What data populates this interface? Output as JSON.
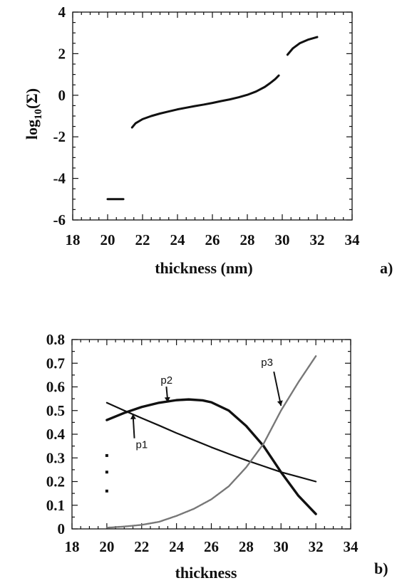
{
  "chart_data": [
    {
      "type": "line",
      "panel_label": "a)",
      "xlabel": "thickness (nm)",
      "ylabel_base": "log",
      "ylabel_sub": "10",
      "ylabel_arg": "(Σ)",
      "xlim": [
        18,
        34
      ],
      "ylim": [
        -6,
        4
      ],
      "xticks": [
        18,
        20,
        22,
        24,
        26,
        28,
        30,
        32,
        34
      ],
      "yticks": [
        4,
        2,
        0,
        -2,
        -4,
        -6
      ],
      "tick_labels_x": [
        "18",
        "20",
        "22",
        "24",
        "26",
        "28",
        "30",
        "32",
        "34"
      ],
      "tick_labels_y": [
        "4",
        "2",
        "0",
        "-2",
        "-4",
        "-6"
      ],
      "grid": false,
      "series": [
        {
          "x": [
            20.0,
            20.3,
            20.6,
            20.9
          ],
          "y": [
            -5.0,
            -5.0,
            -5.0,
            -5.0
          ]
        },
        {
          "x": [
            21.4,
            21.6,
            22.0,
            22.5,
            23.0,
            23.5,
            24.0,
            24.5,
            25.0,
            25.5,
            26.0,
            26.5,
            27.0,
            27.5,
            28.0,
            28.5,
            29.0,
            29.3,
            29.6,
            29.8
          ],
          "y": [
            -1.55,
            -1.35,
            -1.15,
            -1.0,
            -0.88,
            -0.78,
            -0.68,
            -0.6,
            -0.52,
            -0.45,
            -0.37,
            -0.28,
            -0.2,
            -0.1,
            0.02,
            0.18,
            0.4,
            0.58,
            0.78,
            0.95
          ]
        },
        {
          "x": [
            30.3,
            30.6,
            31.0,
            31.5,
            32.0
          ],
          "y": [
            1.95,
            2.25,
            2.5,
            2.68,
            2.8
          ]
        }
      ]
    },
    {
      "type": "line",
      "panel_label": "b)",
      "xlabel": "thickness",
      "ylabel": "",
      "xlim": [
        18,
        34
      ],
      "ylim": [
        0,
        0.8
      ],
      "xticks": [
        18,
        20,
        22,
        24,
        26,
        28,
        30,
        32,
        34
      ],
      "yticks": [
        0.8,
        0.7,
        0.6,
        0.5,
        0.4,
        0.3,
        0.2,
        0.1,
        0
      ],
      "tick_labels_x": [
        "18",
        "20",
        "22",
        "24",
        "26",
        "28",
        "30",
        "32",
        "34"
      ],
      "tick_labels_y": [
        "0.8",
        "0.7",
        "0.6",
        "0.5",
        "0.4",
        "0.3",
        "0.2",
        "0.1",
        "0"
      ],
      "grid": false,
      "series": [
        {
          "name": "p1",
          "x": [
            20,
            21,
            22,
            23,
            24,
            25,
            26,
            27,
            28,
            29,
            30,
            31,
            32
          ],
          "y": [
            0.533,
            0.5,
            0.468,
            0.437,
            0.405,
            0.375,
            0.345,
            0.317,
            0.29,
            0.265,
            0.24,
            0.22,
            0.2
          ]
        },
        {
          "name": "p2",
          "x": [
            20,
            21,
            22,
            23,
            24,
            24.7,
            25.5,
            26,
            27,
            28,
            29,
            30,
            31,
            32
          ],
          "y": [
            0.46,
            0.49,
            0.515,
            0.533,
            0.544,
            0.547,
            0.543,
            0.535,
            0.5,
            0.435,
            0.35,
            0.24,
            0.14,
            0.063
          ]
        },
        {
          "name": "p3",
          "x": [
            20,
            21,
            22,
            23,
            24,
            25,
            26,
            27,
            28,
            29,
            30,
            31,
            32
          ],
          "y": [
            0.005,
            0.01,
            0.017,
            0.03,
            0.055,
            0.085,
            0.125,
            0.18,
            0.26,
            0.36,
            0.5,
            0.62,
            0.73
          ]
        },
        {
          "name": "",
          "x": [
            20,
            20,
            20
          ],
          "y": [
            0.31,
            0.24,
            0.16
          ]
        }
      ],
      "annotations": [
        {
          "text": "p1",
          "target": [
            21.5,
            0.485
          ]
        },
        {
          "text": "p2",
          "target": [
            23.5,
            0.535
          ]
        },
        {
          "text": "p3",
          "target": [
            30.0,
            0.52
          ]
        }
      ]
    }
  ]
}
